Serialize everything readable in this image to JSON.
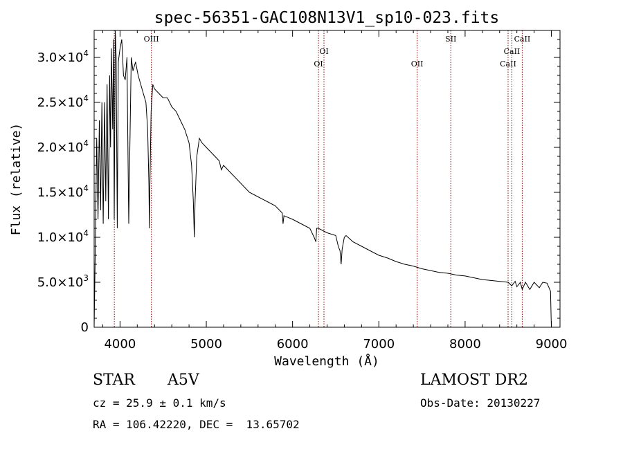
{
  "chart_data": {
    "type": "line",
    "title": "spec-56351-GAC108N13V1_sp10-023.fits",
    "xlabel": "Wavelength (Å)",
    "ylabel": "Flux (relative)",
    "xlim": [
      3700,
      9100
    ],
    "ylim": [
      0,
      33000
    ],
    "grid": false,
    "x_ticks": [
      4000,
      5000,
      6000,
      7000,
      8000,
      9000
    ],
    "x_tick_labels": [
      "4000",
      "5000",
      "6000",
      "7000",
      "8000",
      "9000"
    ],
    "y_ticks": [
      0,
      5000,
      10000,
      15000,
      20000,
      25000,
      30000
    ],
    "y_tick_labels": [
      {
        "mant": "0",
        "exp": ""
      },
      {
        "mant": "5.0×10",
        "exp": "3"
      },
      {
        "mant": "1.0×10",
        "exp": "4"
      },
      {
        "mant": "1.5×10",
        "exp": "4"
      },
      {
        "mant": "2.0×10",
        "exp": "4"
      },
      {
        "mant": "2.5×10",
        "exp": "4"
      },
      {
        "mant": "3.0×10",
        "exp": "4"
      }
    ],
    "series": [
      {
        "x": [
          3700,
          3715,
          3730,
          3745,
          3760,
          3775,
          3790,
          3805,
          3820,
          3835,
          3850,
          3865,
          3880,
          3890,
          3900,
          3915,
          3925,
          3933,
          3945,
          3955,
          3968,
          3980,
          4000,
          4020,
          4040,
          4060,
          4080,
          4095,
          4101,
          4108,
          4130,
          4150,
          4180,
          4210,
          4240,
          4270,
          4300,
          4320,
          4335,
          4340,
          4345,
          4360,
          4380,
          4400,
          4450,
          4500,
          4550,
          4600,
          4650,
          4700,
          4750,
          4800,
          4830,
          4850,
          4861,
          4870,
          4890,
          4920,
          4950,
          5000,
          5050,
          5100,
          5150,
          5175,
          5200,
          5250,
          5300,
          5400,
          5500,
          5600,
          5700,
          5800,
          5880,
          5890,
          5900,
          5950,
          6000,
          6100,
          6200,
          6250,
          6270,
          6280,
          6300,
          6400,
          6500,
          6530,
          6550,
          6563,
          6575,
          6600,
          6620,
          6700,
          6800,
          6900,
          7000,
          7100,
          7200,
          7300,
          7400,
          7500,
          7600,
          7700,
          7800,
          7900,
          8000,
          8100,
          8200,
          8300,
          8400,
          8500,
          8540,
          8580,
          8600,
          8640,
          8662,
          8700,
          8750,
          8800,
          8860,
          8900,
          8950,
          8990,
          9000
        ],
        "y": [
          0,
          10000,
          21000,
          12000,
          23000,
          13000,
          25000,
          11500,
          25000,
          14000,
          27000,
          12000,
          28000,
          20000,
          31000,
          22000,
          32000,
          12000,
          33000,
          30000,
          11000,
          29500,
          31000,
          32000,
          28000,
          27500,
          30000,
          17000,
          11500,
          16000,
          30000,
          28500,
          29500,
          28000,
          27000,
          26000,
          25000,
          22000,
          16000,
          11000,
          15000,
          24000,
          27000,
          26500,
          26000,
          25500,
          25500,
          24500,
          24000,
          23000,
          22000,
          20500,
          18000,
          14000,
          10000,
          14000,
          19000,
          21000,
          20500,
          20000,
          19500,
          19000,
          18500,
          17500,
          18000,
          17500,
          17000,
          16000,
          15000,
          14500,
          14000,
          13500,
          12700,
          11500,
          12400,
          12200,
          12000,
          11500,
          11000,
          10000,
          9500,
          11000,
          11000,
          10500,
          10200,
          9000,
          8500,
          7000,
          8700,
          10000,
          10200,
          9500,
          9000,
          8500,
          8000,
          7700,
          7300,
          7000,
          6800,
          6500,
          6300,
          6100,
          6000,
          5800,
          5700,
          5500,
          5300,
          5200,
          5100,
          5000,
          4600,
          5100,
          4500,
          5000,
          4200,
          5000,
          4200,
          5000,
          4400,
          5000,
          4900,
          4000,
          0
        ]
      }
    ],
    "reference_lines": [
      {
        "x": 3934,
        "label": "CaII",
        "show_label": false
      },
      {
        "x": 4363,
        "label": "OIII",
        "show_label": true,
        "label_row": 0
      },
      {
        "x": 6300,
        "label": "OI",
        "show_label": true,
        "label_row": 2
      },
      {
        "x": 6364,
        "label": "OI",
        "show_label": true,
        "label_row": 1
      },
      {
        "x": 7444,
        "label": "OII",
        "show_label": true,
        "label_row": 2
      },
      {
        "x": 7834,
        "label": "SII",
        "show_label": true,
        "label_row": 0
      },
      {
        "x": 8498,
        "label": "CaII",
        "show_label": true,
        "label_row": 2
      },
      {
        "x": 8542,
        "label": "CaII",
        "show_label": true,
        "label_row": 1
      },
      {
        "x": 8662,
        "label": "CaII",
        "show_label": true,
        "label_row": 0
      }
    ],
    "colors": {
      "spectrum": "#000000",
      "reference_line": "#8b0000",
      "axes": "#000000"
    }
  },
  "info": {
    "object_class": "STAR",
    "subclass": "A5V",
    "survey": "LAMOST DR2",
    "redshift": "cz = 25.9 ± 0.1 km/s",
    "obs_date": "Obs-Date: 20130227",
    "coords": "RA = 106.42220, DEC =  13.65702"
  }
}
